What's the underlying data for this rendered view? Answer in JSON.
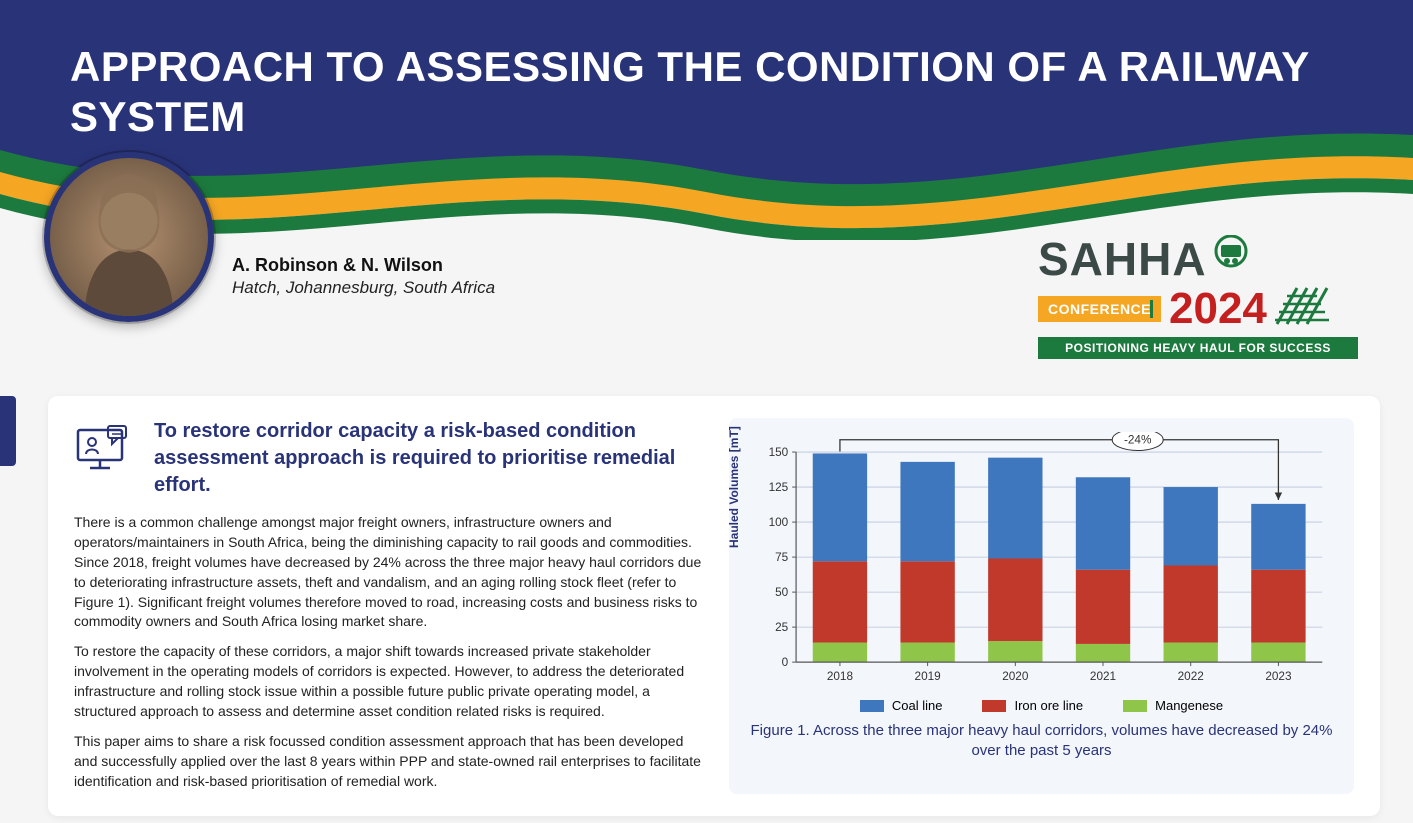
{
  "header": {
    "title": "APPROACH TO ASSESSING THE CONDITION OF A RAILWAY SYSTEM"
  },
  "authors": {
    "names": "A. Robinson & N. Wilson",
    "affiliation": "Hatch, Johannesburg, South Africa"
  },
  "logo": {
    "text": "SAHHA",
    "conference_tag": "CONFERENCE",
    "year": "2024",
    "tagline": "POSITIONING HEAVY HAUL FOR SUCCESS",
    "brand_color": "#3b4a47",
    "year_color": "#c52020",
    "tag_bg": "#f5a623",
    "tagline_bg": "#1d7a3e"
  },
  "wave_colors": {
    "blue": "#293378",
    "green": "#1d7a3e",
    "yellow": "#f5a623"
  },
  "content": {
    "heading": "To restore corridor capacity a risk-based condition assessment approach is required to prioritise remedial effort.",
    "para1": "There is a common challenge amongst major freight owners, infrastructure owners and operators/maintainers in South Africa, being the diminishing capacity to rail goods and commodities. Since 2018, freight volumes have decreased by 24% across the three major heavy haul corridors due to deteriorating infrastructure assets, theft and vandalism, and an aging rolling stock fleet (refer to Figure 1). Significant freight volumes therefore moved to road, increasing costs and business risks to commodity owners and South Africa losing market share.",
    "para2": "To restore the capacity of these corridors, a major shift towards increased private stakeholder involvement in the operating models of corridors is expected. However, to address the deteriorated infrastructure and rolling stock issue within a possible future public private operating model, a structured approach to assess and determine asset condition related risks is required.",
    "para3": "This paper aims to share a risk focussed condition assessment approach that has been developed and successfully applied over the last 8 years within PPP and state-owned rail enterprises to facilitate identification and risk-based prioritisation of remedial work."
  },
  "chart": {
    "type": "stacked_bar",
    "ylabel": "Hauled Volumes [mT]",
    "categories": [
      "2018",
      "2019",
      "2020",
      "2021",
      "2022",
      "2023"
    ],
    "series": [
      {
        "name": "Mangenese",
        "color": "#8fc64a",
        "values": [
          14,
          14,
          15,
          13,
          14,
          14
        ]
      },
      {
        "name": "Iron ore line",
        "color": "#c0392b",
        "values": [
          58,
          58,
          59,
          53,
          55,
          52
        ]
      },
      {
        "name": "Coal line",
        "color": "#3e77bd",
        "values": [
          77,
          71,
          72,
          66,
          56,
          47
        ]
      }
    ],
    "legend_order": [
      "Coal line",
      "Iron ore line",
      "Mangenese"
    ],
    "ylim": [
      0,
      150
    ],
    "ytick_step": 25,
    "bar_width": 0.62,
    "background_color": "#f3f6fb",
    "grid_color": "#b8c3d9",
    "axis_color": "#555",
    "annotation": {
      "label": "-24%",
      "from_index": 0,
      "to_index": 5
    },
    "caption": "Figure 1. Across the three major heavy haul corridors, volumes have decreased by 24% over the past 5 years"
  }
}
